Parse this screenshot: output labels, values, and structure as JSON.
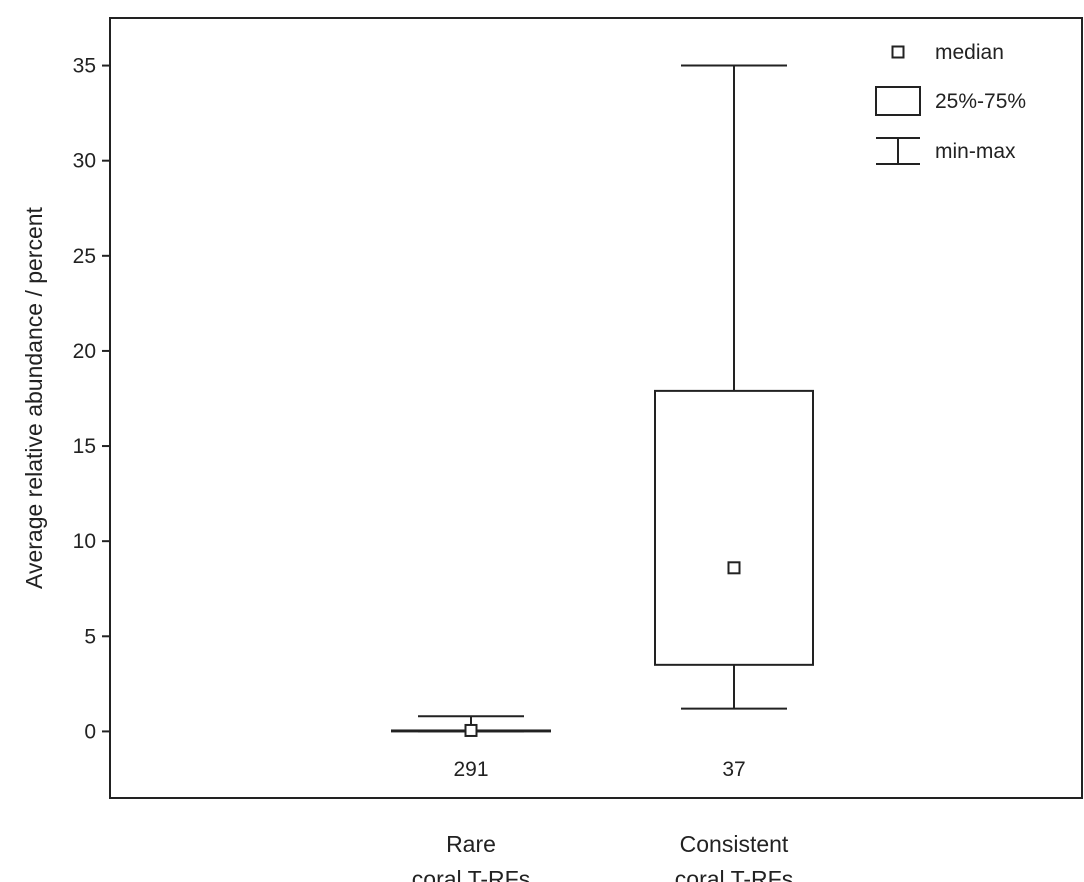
{
  "chart_data": {
    "type": "box",
    "ylabel": "Average relative abundance / percent",
    "xlabel": "",
    "ylim": [
      -3.5,
      37.5
    ],
    "yticks": [
      0,
      5,
      10,
      15,
      20,
      25,
      30,
      35
    ],
    "grid": false,
    "legend_placement": "top-right",
    "categories": [
      {
        "lines": [
          "Rare",
          "coral T-RFs"
        ]
      },
      {
        "lines": [
          "Consistent",
          "coral T-RFs"
        ]
      }
    ],
    "boxes": [
      {
        "category": "Rare coral T-RFs",
        "min": 0.0,
        "q1": 0.0,
        "median": 0.05,
        "q3": 0.05,
        "max": 0.8,
        "n": "291"
      },
      {
        "category": "Consistent coral T-RFs",
        "min": 1.2,
        "q1": 3.5,
        "median": 8.6,
        "q3": 17.9,
        "max": 35.0,
        "n": "37"
      }
    ],
    "legend": [
      {
        "symbol": "median",
        "label": "median"
      },
      {
        "symbol": "box",
        "label": "25%-75%"
      },
      {
        "symbol": "whisker",
        "label": "min-max"
      }
    ]
  }
}
